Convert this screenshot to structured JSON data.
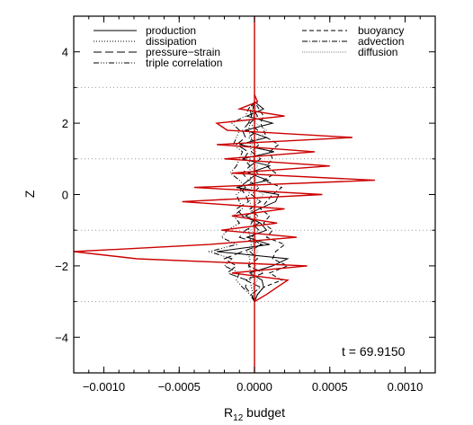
{
  "chart_data": {
    "type": "line",
    "xlabel": {
      "main": "R",
      "sub": "12",
      "rest": " budget"
    },
    "ylabel": "Z",
    "xlim": [
      -0.0012,
      0.0012
    ],
    "ylim": [
      -5,
      5
    ],
    "x_ticks": [
      -0.001,
      -0.0005,
      0,
      0.0005,
      0.001
    ],
    "x_tick_labels": [
      "−0.0010",
      "−0.0005",
      "0.0000",
      "0.0005",
      "0.0010"
    ],
    "y_ticks": [
      -4,
      -2,
      0,
      2,
      4
    ],
    "y_tick_labels": [
      "−4",
      "−2",
      "0",
      "2",
      "4"
    ],
    "annotation": "t = 69.9150",
    "legend_left": [
      "production",
      "dissipation",
      "pressure−strain",
      "triple correlation"
    ],
    "legend_right": [
      "buoyancy",
      "advection",
      "diffusion"
    ],
    "grid": "dotted horizontal lines at z = -3, -1, 1, 3",
    "zero_line_color": "#cc0000",
    "red_series_color": "#cc0000",
    "z": [
      -3.0,
      -2.8,
      -2.6,
      -2.4,
      -2.2,
      -2.0,
      -1.8,
      -1.6,
      -1.4,
      -1.2,
      -1.0,
      -0.8,
      -0.6,
      -0.4,
      -0.2,
      0.0,
      0.2,
      0.4,
      0.6,
      0.8,
      1.0,
      1.2,
      1.4,
      1.6,
      1.8,
      2.0,
      2.2,
      2.4,
      2.6,
      2.8
    ],
    "series": [
      {
        "name": "production",
        "color": "#000000",
        "dash": "",
        "values": [
          0.0,
          2e-05,
          6e-05,
          5e-05,
          -3e-05,
          0.00012,
          0.00022,
          -0.00025,
          0.0001,
          -5e-05,
          8e-05,
          4e-05,
          -6e-05,
          3e-05,
          0.00014,
          0.00016,
          -0.00012,
          9e-05,
          -4e-05,
          0.0001,
          -8e-05,
          0.00013,
          -0.0001,
          8e-05,
          -6e-05,
          0.00012,
          -5e-05,
          6e-05,
          0.0,
          0.0
        ]
      },
      {
        "name": "dissipation",
        "color": "#000000",
        "dash": "1,2",
        "values": [
          0.0,
          -1e-05,
          -2e-05,
          -3e-05,
          -2e-05,
          -4e-05,
          -3e-05,
          -5e-05,
          -2e-05,
          -3e-05,
          -4e-05,
          -2e-05,
          -3e-05,
          -2e-05,
          -3e-05,
          -4e-05,
          -2e-05,
          -3e-05,
          -2e-05,
          -4e-05,
          -3e-05,
          -2e-05,
          -3e-05,
          -2e-05,
          -4e-05,
          -3e-05,
          -2e-05,
          -1e-05,
          0.0,
          0.0
        ]
      },
      {
        "name": "pressure−strain",
        "color": "#000000",
        "dash": "9,4",
        "values": [
          0.0,
          -2e-05,
          -6e-05,
          -5e-05,
          -0.00018,
          -0.00012,
          -0.0002,
          -8e-05,
          5e-05,
          -0.0001,
          -6e-05,
          3e-05,
          -8e-05,
          -0.00012,
          -4e-05,
          -6e-05,
          -0.0001,
          -4e-05,
          -8e-05,
          -3e-05,
          -7e-05,
          -4e-05,
          -0.00012,
          -6e-05,
          -8e-05,
          -4e-05,
          -2e-05,
          -3e-05,
          0.0,
          0.0
        ]
      },
      {
        "name": "triple correlation",
        "color": "#000000",
        "dash": "6,2,1,2,1,2,1,2",
        "values": [
          0.0,
          -3e-05,
          -8e-05,
          -0.00012,
          -0.0001,
          -0.0002,
          -0.00015,
          -0.0003,
          -0.00012,
          -0.00022,
          -0.00018,
          -0.0001,
          -0.00014,
          -8e-05,
          -0.0001,
          -0.00012,
          -6e-05,
          -0.0001,
          -0.00016,
          -0.00012,
          -0.0001,
          -8e-05,
          -0.00014,
          -0.00012,
          -0.0001,
          -0.00015,
          -6e-05,
          -4e-05,
          0.0,
          0.0
        ]
      },
      {
        "name": "buoyancy",
        "color": "#000000",
        "dash": "5,3",
        "values": [
          0.0,
          2e-05,
          6e-05,
          0.00018,
          0.0001,
          0.00022,
          0.00012,
          0.00014,
          0.0002,
          8e-05,
          0.00012,
          6e-05,
          0.0001,
          4e-05,
          8e-05,
          0.00012,
          0.00018,
          6e-05,
          0.00014,
          8e-05,
          0.00012,
          0.0001,
          0.00016,
          8e-05,
          6e-05,
          4e-05,
          6e-05,
          3e-05,
          0.0,
          0.0
        ]
      },
      {
        "name": "advection",
        "color": "#000000",
        "dash": "6,2,1,2",
        "values": [
          0.0,
          -2e-05,
          4e-05,
          -6e-05,
          6e-05,
          -4e-05,
          2e-05,
          -3e-05,
          4e-05,
          -2e-05,
          3e-05,
          -2e-05,
          2e-05,
          -3e-05,
          4e-05,
          -2e-05,
          3e-05,
          -4e-05,
          2e-05,
          -3e-05,
          4e-05,
          -2e-05,
          3e-05,
          -4e-05,
          2e-05,
          -3e-05,
          2e-05,
          -1e-05,
          0.0,
          0.0
        ]
      },
      {
        "name": "diffusion",
        "color": "#888888",
        "dash": "1,1",
        "values": [
          0.0,
          1e-05,
          -1e-05,
          2e-05,
          -2e-05,
          1e-05,
          -1e-05,
          2e-05,
          -1e-05,
          1e-05,
          -2e-05,
          1e-05,
          2e-05,
          -1e-05,
          1e-05,
          6e-05,
          -2e-05,
          1e-05,
          -1e-05,
          2e-05,
          -1e-05,
          1e-05,
          -2e-05,
          3e-05,
          8e-05,
          1e-05,
          -1e-05,
          1e-05,
          0.0,
          0.0
        ]
      },
      {
        "name": "",
        "color": "#cc0000",
        "dash": "",
        "values": [
          0.0,
          8e-05,
          0.00015,
          0.00022,
          -0.00015,
          0.00035,
          -0.00078,
          -0.0012,
          -0.0003,
          0.00028,
          -0.00022,
          0.00015,
          -0.00015,
          0.0002,
          -0.00048,
          0.00045,
          -0.0004,
          0.0008,
          -0.00015,
          0.0005,
          -0.0002,
          0.0004,
          -0.00025,
          0.00065,
          -0.00018,
          -0.00025,
          0.0002,
          -0.0001,
          2e-05,
          0.0
        ]
      }
    ]
  }
}
